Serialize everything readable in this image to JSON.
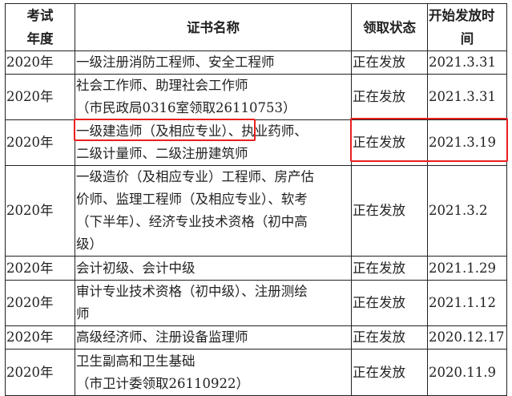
{
  "colors": {
    "highlight": "#e8201f",
    "border": "#222222"
  },
  "header": {
    "year": [
      "考试",
      "年度"
    ],
    "name": [
      "证书名称"
    ],
    "status": [
      "领取状态"
    ],
    "date": [
      "开始发放时",
      "间"
    ]
  },
  "rows": [
    {
      "year": "2020年",
      "name": [
        "一级注册消防工程师、安全工程师"
      ],
      "status": "正在发放",
      "date": "2021.3.31"
    },
    {
      "year": "2020年",
      "name": [
        "社会工作师、助理社会工作师",
        "（市民政局0316室领取26110753）"
      ],
      "status": "正在发放",
      "date": "2021.3.31"
    },
    {
      "year": "2020年",
      "name": [
        "一级建造师（及相应专业）、执业药师、",
        "二级计量师、二级注册建筑师"
      ],
      "status": "正在发放",
      "date": "2021.3.19",
      "highlighted": true
    },
    {
      "year": "2020年",
      "name": [
        "一级造价（及相应专业）工程师、房产估",
        "价师、监理工程师（及相应专业）、软考",
        "（下半年）、经济专业技术资格（初中高",
        "级）"
      ],
      "status": "正在发放",
      "date": "2021.3.2"
    },
    {
      "year": "2020年",
      "name": [
        "会计初级、会计中级"
      ],
      "status": "正在发放",
      "date": "2021.1.29"
    },
    {
      "year": "2020年",
      "name": [
        "审计专业技术资格（初中级）、注册测绘",
        "师"
      ],
      "status": "正在发放",
      "date": "2021.1.12"
    },
    {
      "year": "2020年",
      "name": [
        "高级经济师、注册设备监理师"
      ],
      "status": "正在发放",
      "date": "2020.12.17"
    },
    {
      "year": "2020年",
      "name": [
        "卫生副高和卫生基础",
        "（市卫计委领取26110922）"
      ],
      "status": "正在发放",
      "date": "2020.11.9"
    }
  ]
}
